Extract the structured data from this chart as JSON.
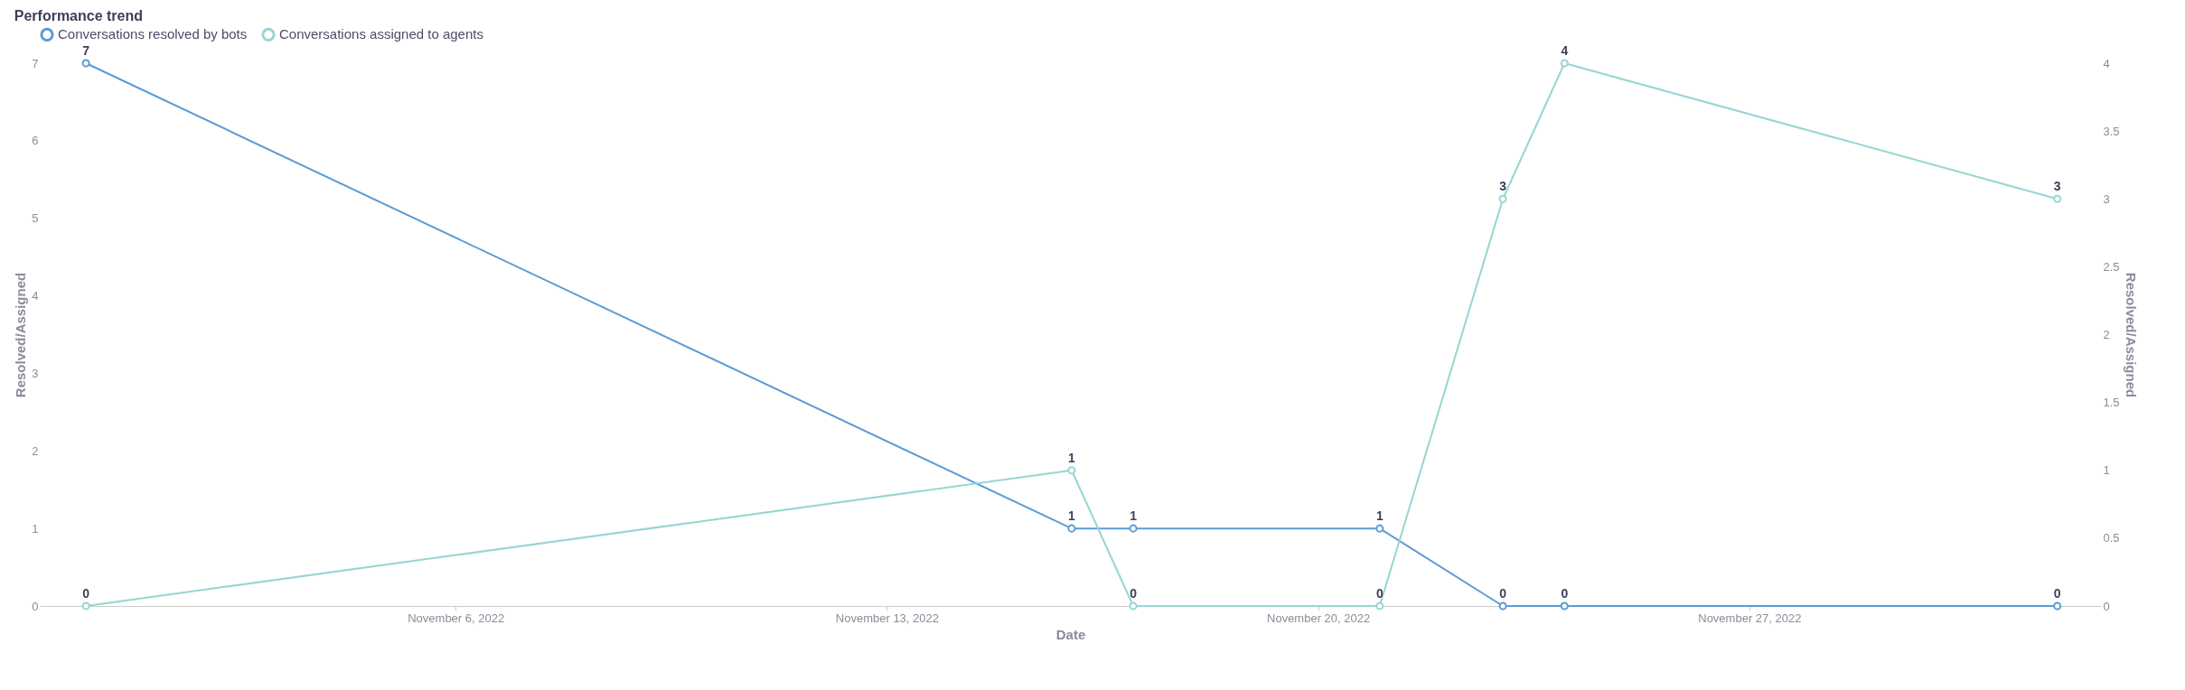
{
  "chart_data": {
    "type": "line",
    "title": "Performance trend",
    "xlabel": "Date",
    "ylabel": "Resolved/Assigned",
    "y2label": "Resolved/Assigned",
    "x": [
      "2022-10-31",
      "2022-11-16",
      "2022-11-17",
      "2022-11-21",
      "2022-11-23",
      "2022-11-24",
      "2022-12-02"
    ],
    "series": [
      {
        "name": "Conversations resolved by bots",
        "color": "#5b9bd5",
        "values": [
          7,
          1,
          1,
          1,
          0,
          0,
          0
        ]
      },
      {
        "name": "Conversations assigned to agents",
        "color": "#98d5d2",
        "axis": "y2",
        "values": [
          0,
          1,
          0,
          0,
          3,
          4,
          3
        ]
      }
    ],
    "xlim": [
      "2022-10-30T06:00",
      "2022-12-02T17:00"
    ],
    "xticks": [
      {
        "value": "2022-11-06",
        "label": "November 6, 2022"
      },
      {
        "value": "2022-11-13",
        "label": "November 13, 2022"
      },
      {
        "value": "2022-11-20",
        "label": "November 20, 2022"
      },
      {
        "value": "2022-11-27",
        "label": "November 27, 2022"
      }
    ],
    "ylim": [
      0,
      7
    ],
    "yticks": [
      0,
      1,
      2,
      3,
      4,
      5,
      6,
      7
    ],
    "y2lim": [
      0,
      4
    ],
    "y2ticks": [
      0,
      0.5,
      1,
      1.5,
      2,
      2.5,
      3,
      3.5,
      4
    ],
    "data_labels": true,
    "marker": "circle",
    "line_style": "solid",
    "grid": false,
    "legend": "top left"
  }
}
